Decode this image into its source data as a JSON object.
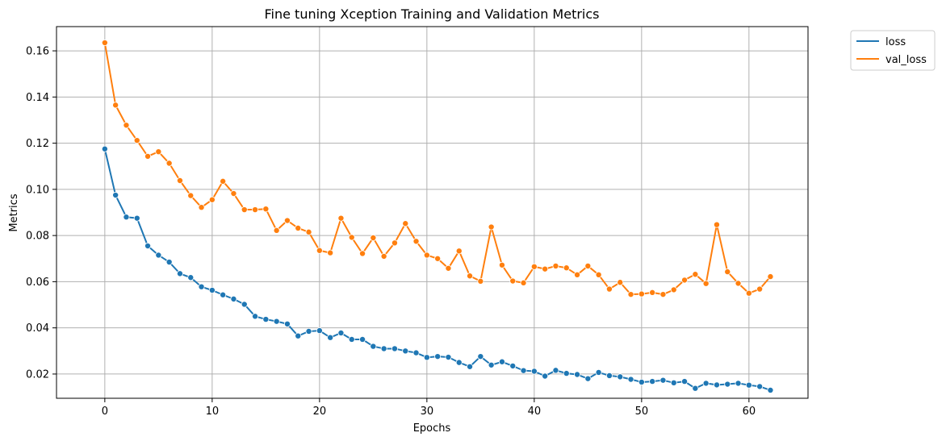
{
  "chart_data": {
    "type": "line",
    "title": "Fine tuning Xception Training and Validation Metrics",
    "xlabel": "Epochs",
    "ylabel": "Metrics",
    "xlim": [
      -4.5,
      65.5
    ],
    "ylim": [
      0.0095,
      0.1705
    ],
    "xticks": [
      0,
      10,
      20,
      30,
      40,
      50,
      60
    ],
    "yticks": [
      0.02,
      0.04,
      0.06,
      0.08,
      0.1,
      0.12,
      0.14,
      0.16
    ],
    "ytick_labels": [
      "0.02",
      "0.04",
      "0.06",
      "0.08",
      "0.10",
      "0.12",
      "0.14",
      "0.16"
    ],
    "grid": true,
    "legend_position": "outside top-right",
    "series": [
      {
        "name": "loss",
        "color": "#1f77b4",
        "marker": "circle",
        "values": [
          0.1175,
          0.0975,
          0.088,
          0.0875,
          0.0755,
          0.0715,
          0.0685,
          0.0635,
          0.0618,
          0.0578,
          0.0563,
          0.0543,
          0.0525,
          0.0502,
          0.045,
          0.0437,
          0.0428,
          0.0417,
          0.0365,
          0.0385,
          0.0388,
          0.0358,
          0.0378,
          0.035,
          0.035,
          0.032,
          0.031,
          0.031,
          0.03,
          0.0292,
          0.0272,
          0.0276,
          0.0273,
          0.025,
          0.0232,
          0.0276,
          0.0239,
          0.0253,
          0.0235,
          0.0215,
          0.0212,
          0.0191,
          0.0216,
          0.0203,
          0.0198,
          0.018,
          0.0207,
          0.0193,
          0.0188,
          0.0177,
          0.0165,
          0.0168,
          0.0173,
          0.0162,
          0.0168,
          0.0138,
          0.016,
          0.0153,
          0.0156,
          0.016,
          0.0152,
          0.0146,
          0.013
        ]
      },
      {
        "name": "val_loss",
        "color": "#ff7f0e",
        "marker": "circle",
        "values": [
          0.1635,
          0.1365,
          0.1278,
          0.1212,
          0.1143,
          0.1163,
          0.1113,
          0.1038,
          0.0973,
          0.0922,
          0.0955,
          0.1035,
          0.0982,
          0.0912,
          0.0912,
          0.0915,
          0.0822,
          0.0865,
          0.0832,
          0.0815,
          0.0735,
          0.0725,
          0.0875,
          0.0792,
          0.0722,
          0.079,
          0.071,
          0.0768,
          0.0852,
          0.0775,
          0.0715,
          0.07,
          0.0658,
          0.0733,
          0.0625,
          0.0602,
          0.0837,
          0.0672,
          0.0603,
          0.0595,
          0.0665,
          0.0655,
          0.0668,
          0.066,
          0.063,
          0.0668,
          0.063,
          0.0568,
          0.0597,
          0.0545,
          0.0547,
          0.0553,
          0.0545,
          0.0565,
          0.0607,
          0.0632,
          0.0592,
          0.0847,
          0.0643,
          0.0593,
          0.055,
          0.0568,
          0.0622
        ]
      }
    ]
  }
}
